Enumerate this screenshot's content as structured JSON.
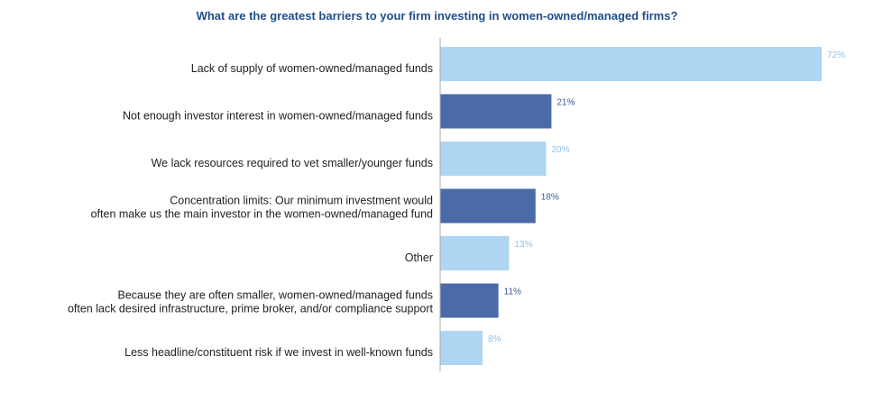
{
  "chart_data": {
    "type": "bar",
    "orientation": "horizontal",
    "title": "What are the greatest barriers to your firm investing in women-owned/managed firms?",
    "categories": [
      [
        "Lack of supply of women-owned/managed funds"
      ],
      [
        "Not enough investor interest in women-owned/managed funds"
      ],
      [
        "We lack resources required to vet smaller/younger funds"
      ],
      [
        "Concentration limits: Our minimum investment would",
        "often make us the main investor in the women-owned/managed fund"
      ],
      [
        "Other"
      ],
      [
        "Because they are often smaller, women-owned/managed funds",
        "often lack desired infrastructure, prime broker, and/or compliance support"
      ],
      [
        "Less headline/constituent risk if we invest in well-known funds"
      ]
    ],
    "values": [
      72,
      21,
      20,
      18,
      13,
      11,
      8
    ],
    "value_labels": [
      "72%",
      "21%",
      "20%",
      "18%",
      "13%",
      "11%",
      "8%"
    ],
    "bar_colors": [
      "#aed6f3",
      "#4a6aa8",
      "#aed6f3",
      "#4a6aa8",
      "#aed6f3",
      "#4a6aa8",
      "#aed6f3"
    ],
    "label_colors": [
      "#8fc3ea",
      "#3a5a98",
      "#8fc3ea",
      "#3a5a98",
      "#8fc3ea",
      "#3a5a98",
      "#8fc3ea"
    ],
    "xlim": [
      0,
      72
    ],
    "axis_color": "#aaaaaa",
    "grid": false,
    "legend": false
  }
}
